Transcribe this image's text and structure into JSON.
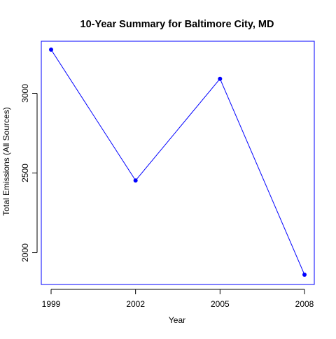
{
  "chart_data": {
    "type": "line",
    "title": "10-Year Summary for Baltimore City, MD",
    "xlabel": "Year",
    "ylabel": "Total Emissions (All Sources)",
    "x": [
      1999,
      2002,
      2005,
      2008
    ],
    "series": [
      {
        "values": [
          3274,
          2453,
          3091,
          1862
        ],
        "color": "#0000ff"
      }
    ],
    "xlim": [
      1999,
      2008
    ],
    "ylim": [
      1862,
      3274
    ],
    "xticks": [
      1999,
      2002,
      2005,
      2008
    ],
    "xtick_labels": [
      "1999",
      "2002",
      "2005",
      "2008"
    ],
    "yticks": [
      2000,
      2500,
      3000
    ],
    "ytick_labels": [
      "2000",
      "2500",
      "3000"
    ],
    "grid": false,
    "legend": false,
    "marker": "filled-circle",
    "plot_frame_color": "#0000ff",
    "axis_color": "#000000"
  }
}
